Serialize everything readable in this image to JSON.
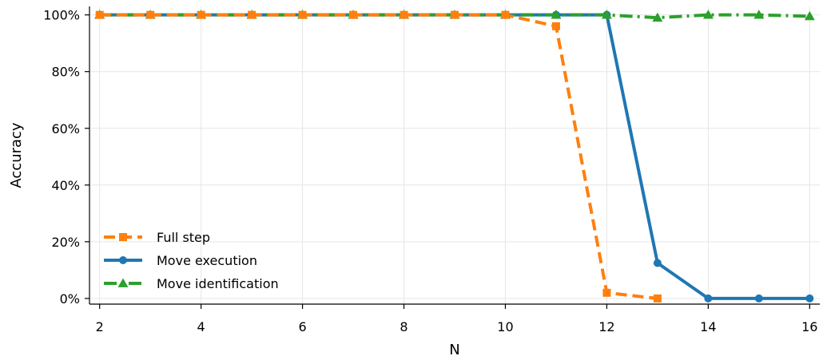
{
  "chart_data": {
    "type": "line",
    "xlabel": "N",
    "ylabel": "Accuracy",
    "xlim": [
      1.8,
      16.2
    ],
    "ylim": [
      -0.02,
      1.03
    ],
    "xticks": [
      2,
      4,
      6,
      8,
      10,
      12,
      14,
      16
    ],
    "xtick_labels": [
      "2",
      "4",
      "6",
      "8",
      "10",
      "12",
      "14",
      "16"
    ],
    "yticks": [
      0,
      0.2,
      0.4,
      0.6,
      0.8,
      1.0
    ],
    "ytick_labels": [
      "0%",
      "20%",
      "40%",
      "60%",
      "80%",
      "100%"
    ],
    "grid": true,
    "legend_position": "lower-left",
    "series": [
      {
        "name": "Full step",
        "color": "#ff7f0e",
        "line_style": "dashed",
        "marker": "square",
        "x": [
          2,
          3,
          4,
          5,
          6,
          7,
          8,
          9,
          10,
          11,
          12,
          13
        ],
        "y": [
          1.0,
          1.0,
          1.0,
          1.0,
          1.0,
          1.0,
          1.0,
          1.0,
          1.0,
          0.96,
          0.02,
          0.0
        ]
      },
      {
        "name": "Move execution",
        "color": "#1f77b4",
        "line_style": "solid",
        "marker": "circle",
        "x": [
          2,
          3,
          4,
          5,
          6,
          7,
          8,
          9,
          10,
          11,
          12,
          13,
          14,
          15,
          16
        ],
        "y": [
          1.0,
          1.0,
          1.0,
          1.0,
          1.0,
          1.0,
          1.0,
          1.0,
          1.0,
          1.0,
          1.0,
          0.125,
          0.0,
          0.0,
          0.0
        ]
      },
      {
        "name": "Move identification",
        "color": "#2ca02c",
        "line_style": "dashdot",
        "marker": "triangle",
        "x": [
          2,
          3,
          4,
          5,
          6,
          7,
          8,
          9,
          10,
          11,
          12,
          13,
          14,
          15,
          16
        ],
        "y": [
          1.0,
          1.0,
          1.0,
          1.0,
          1.0,
          1.0,
          1.0,
          1.0,
          1.0,
          1.0,
          1.0,
          0.99,
          1.0,
          1.0,
          0.995
        ]
      }
    ]
  }
}
